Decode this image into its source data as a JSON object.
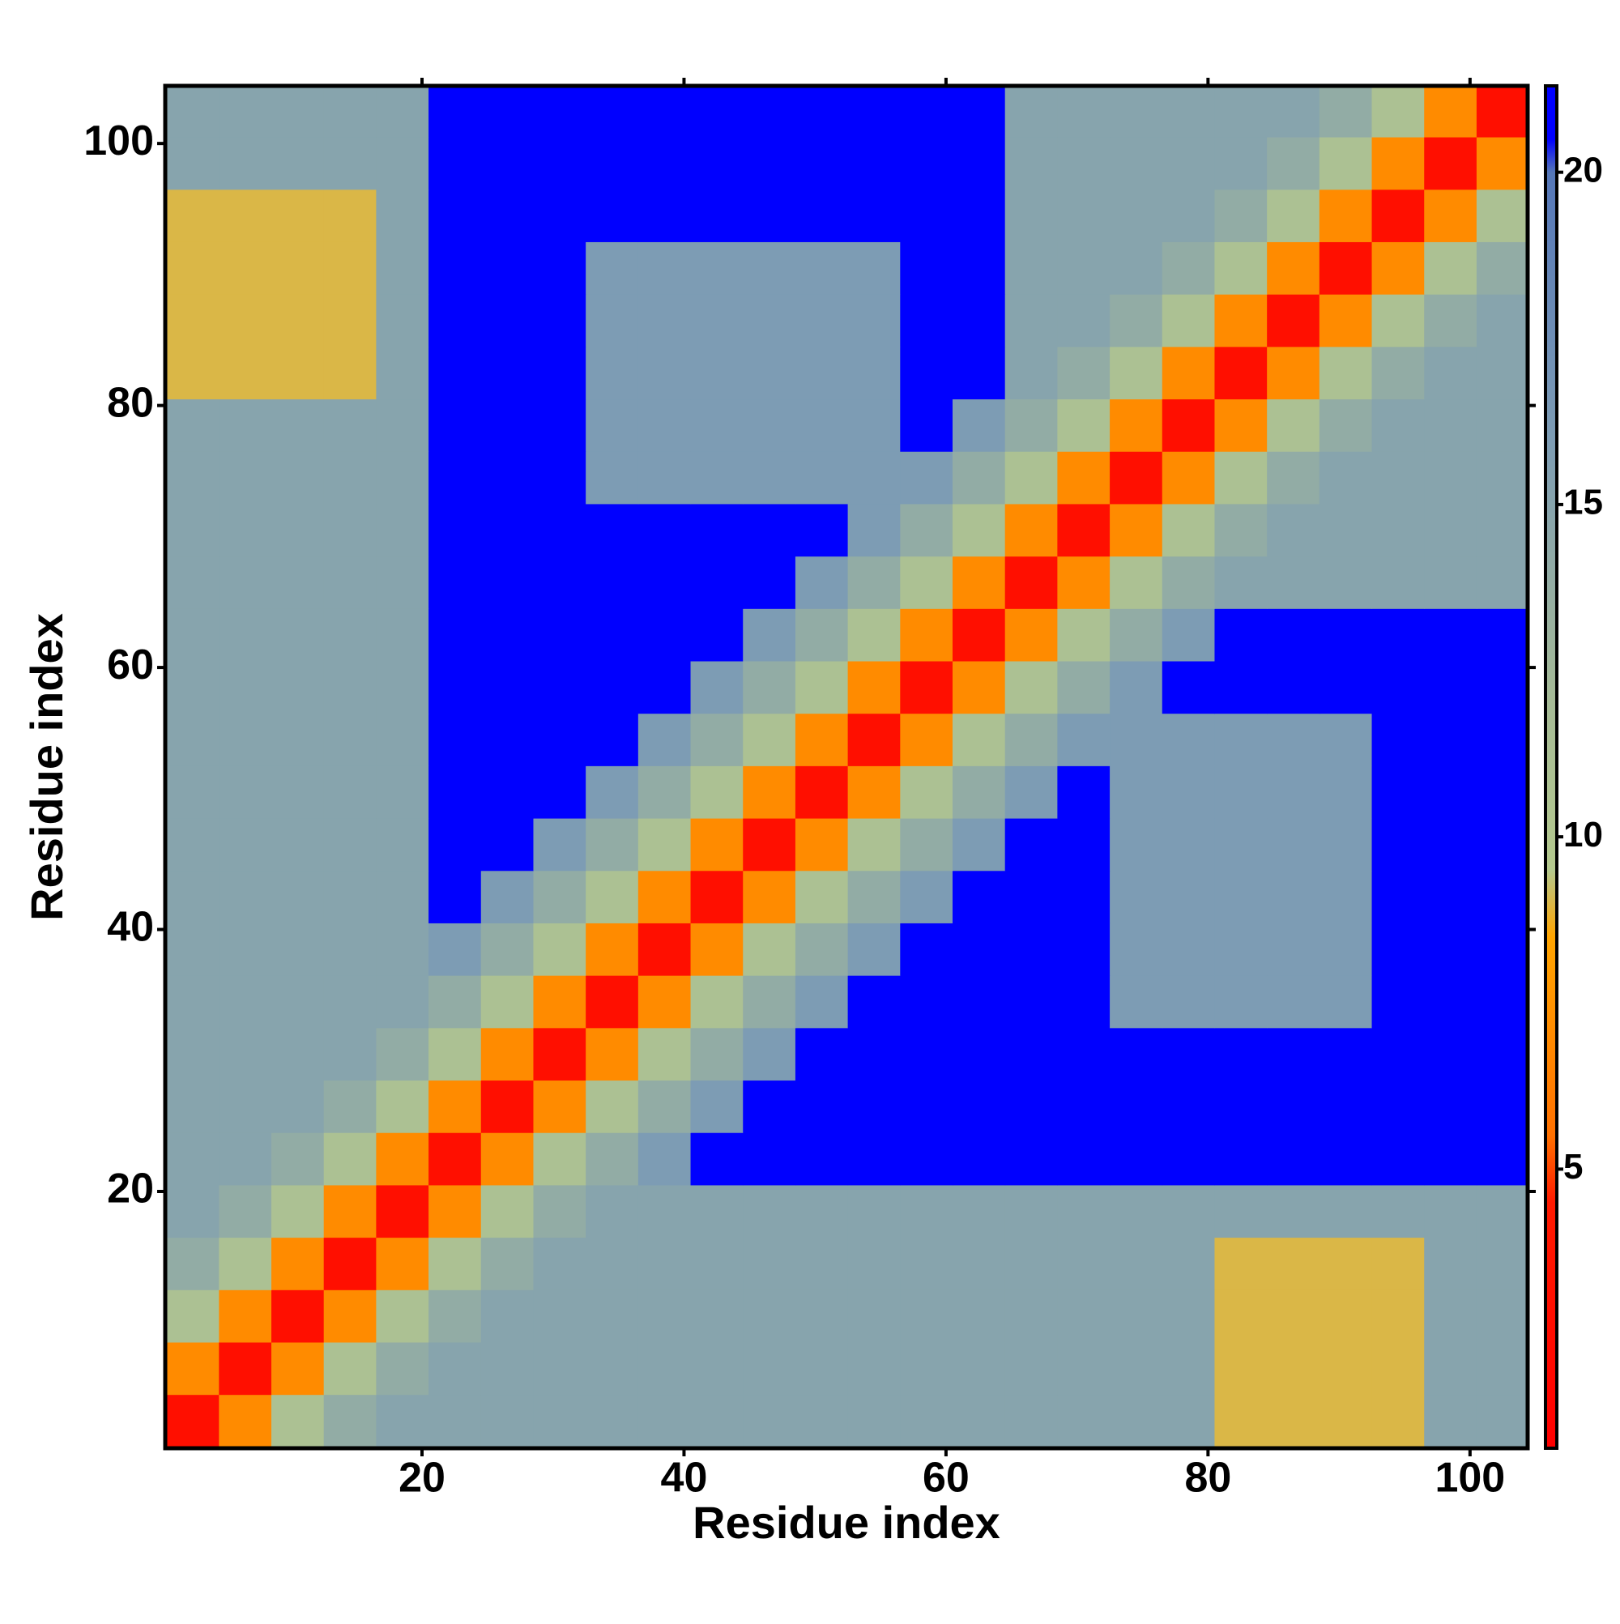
{
  "chart_data": {
    "type": "heatmap",
    "x_label": "Residue index",
    "y_label": "Residue index",
    "x": [
      2.5,
      6.5,
      10.5,
      14.5,
      18.5,
      22.5,
      26.5,
      30.5,
      34.5,
      38.5,
      42.5,
      46.5,
      50.5,
      54.5,
      58.5,
      62.5,
      66.5,
      70.5,
      74.5,
      78.5,
      82.5,
      86.5,
      90.5,
      94.5,
      98.5,
      102.5
    ],
    "y": [
      2.5,
      6.5,
      10.5,
      14.5,
      18.5,
      22.5,
      26.5,
      30.5,
      34.5,
      38.5,
      42.5,
      46.5,
      50.5,
      54.5,
      58.5,
      62.5,
      66.5,
      70.5,
      74.5,
      78.5,
      82.5,
      86.5,
      90.5,
      94.5,
      98.5,
      102.5
    ],
    "values": [
      [
        3,
        7,
        11,
        14,
        15,
        15,
        15,
        15,
        15,
        15,
        15,
        15,
        15,
        15,
        15,
        15,
        15,
        15,
        15,
        15,
        9,
        9,
        9,
        9,
        15,
        15
      ],
      [
        7,
        3,
        7,
        11,
        14,
        15,
        15,
        15,
        15,
        15,
        15,
        15,
        15,
        15,
        15,
        15,
        15,
        15,
        15,
        15,
        9,
        9,
        9,
        9,
        15,
        15
      ],
      [
        11,
        7,
        3,
        7,
        11,
        14,
        15,
        15,
        15,
        15,
        15,
        15,
        15,
        15,
        15,
        15,
        15,
        15,
        15,
        15,
        9,
        9,
        9,
        9,
        15,
        15
      ],
      [
        14,
        11,
        7,
        3,
        7,
        11,
        14,
        15,
        15,
        15,
        15,
        15,
        15,
        15,
        15,
        15,
        15,
        15,
        15,
        15,
        9,
        9,
        9,
        9,
        15,
        15
      ],
      [
        15,
        14,
        11,
        7,
        3,
        7,
        11,
        14,
        15,
        15,
        15,
        15,
        15,
        15,
        15,
        15,
        15,
        15,
        15,
        15,
        15,
        15,
        15,
        15,
        15,
        15
      ],
      [
        15,
        15,
        14,
        11,
        7,
        3,
        7,
        11,
        14,
        16,
        21,
        21,
        21,
        21,
        21,
        21,
        21,
        21,
        21,
        21,
        21,
        21,
        21,
        21,
        21,
        21
      ],
      [
        15,
        15,
        15,
        14,
        11,
        7,
        3,
        7,
        11,
        14,
        16,
        21,
        21,
        21,
        21,
        21,
        21,
        21,
        21,
        21,
        21,
        21,
        21,
        21,
        21,
        21
      ],
      [
        15,
        15,
        15,
        15,
        14,
        11,
        7,
        3,
        7,
        11,
        14,
        16,
        21,
        21,
        21,
        21,
        21,
        21,
        21,
        21,
        21,
        21,
        21,
        21,
        21,
        21
      ],
      [
        15,
        15,
        15,
        15,
        15,
        14,
        11,
        7,
        3,
        7,
        11,
        14,
        16,
        21,
        21,
        21,
        21,
        21,
        16,
        16,
        16,
        16,
        16,
        21,
        21,
        21
      ],
      [
        15,
        15,
        15,
        15,
        15,
        16,
        14,
        11,
        7,
        3,
        7,
        11,
        14,
        16,
        21,
        21,
        21,
        21,
        16,
        16,
        16,
        16,
        16,
        21,
        21,
        21
      ],
      [
        15,
        15,
        15,
        15,
        15,
        21,
        16,
        14,
        11,
        7,
        3,
        7,
        11,
        14,
        16,
        21,
        21,
        21,
        16,
        16,
        16,
        16,
        16,
        21,
        21,
        21
      ],
      [
        15,
        15,
        15,
        15,
        15,
        21,
        21,
        16,
        14,
        11,
        7,
        3,
        7,
        11,
        14,
        16,
        21,
        21,
        16,
        16,
        16,
        16,
        16,
        21,
        21,
        21
      ],
      [
        15,
        15,
        15,
        15,
        15,
        21,
        21,
        21,
        16,
        14,
        11,
        7,
        3,
        7,
        11,
        14,
        16,
        21,
        16,
        16,
        16,
        16,
        16,
        21,
        21,
        21
      ],
      [
        15,
        15,
        15,
        15,
        15,
        21,
        21,
        21,
        21,
        16,
        14,
        11,
        7,
        3,
        7,
        11,
        14,
        16,
        16,
        16,
        16,
        16,
        16,
        21,
        21,
        21
      ],
      [
        15,
        15,
        15,
        15,
        15,
        21,
        21,
        21,
        21,
        21,
        16,
        14,
        11,
        7,
        3,
        7,
        11,
        14,
        16,
        21,
        21,
        21,
        21,
        21,
        21,
        21
      ],
      [
        15,
        15,
        15,
        15,
        15,
        21,
        21,
        21,
        21,
        21,
        21,
        16,
        14,
        11,
        7,
        3,
        7,
        11,
        14,
        16,
        21,
        21,
        21,
        21,
        21,
        21
      ],
      [
        15,
        15,
        15,
        15,
        15,
        21,
        21,
        21,
        21,
        21,
        21,
        21,
        16,
        14,
        11,
        7,
        3,
        7,
        11,
        14,
        15,
        15,
        15,
        15,
        15,
        15
      ],
      [
        15,
        15,
        15,
        15,
        15,
        21,
        21,
        21,
        21,
        21,
        21,
        21,
        21,
        16,
        14,
        11,
        7,
        3,
        7,
        11,
        14,
        15,
        15,
        15,
        15,
        15
      ],
      [
        15,
        15,
        15,
        15,
        15,
        21,
        21,
        21,
        16,
        16,
        16,
        16,
        16,
        16,
        16,
        14,
        11,
        7,
        3,
        7,
        11,
        14,
        15,
        15,
        15,
        15
      ],
      [
        15,
        15,
        15,
        15,
        15,
        21,
        21,
        21,
        16,
        16,
        16,
        16,
        16,
        16,
        21,
        16,
        14,
        11,
        7,
        3,
        7,
        11,
        14,
        15,
        15,
        15
      ],
      [
        9,
        9,
        9,
        9,
        15,
        21,
        21,
        21,
        16,
        16,
        16,
        16,
        16,
        16,
        21,
        21,
        15,
        14,
        11,
        7,
        3,
        7,
        11,
        14,
        15,
        15
      ],
      [
        9,
        9,
        9,
        9,
        15,
        21,
        21,
        21,
        16,
        16,
        16,
        16,
        16,
        16,
        21,
        21,
        15,
        15,
        14,
        11,
        7,
        3,
        7,
        11,
        14,
        15
      ],
      [
        9,
        9,
        9,
        9,
        15,
        21,
        21,
        21,
        16,
        16,
        16,
        16,
        16,
        16,
        21,
        21,
        15,
        15,
        15,
        14,
        11,
        7,
        3,
        7,
        11,
        14
      ],
      [
        9,
        9,
        9,
        9,
        15,
        21,
        21,
        21,
        21,
        21,
        21,
        21,
        21,
        21,
        21,
        21,
        15,
        15,
        15,
        15,
        14,
        11,
        7,
        3,
        7,
        11
      ],
      [
        15,
        15,
        15,
        15,
        15,
        21,
        21,
        21,
        21,
        21,
        21,
        21,
        21,
        21,
        21,
        21,
        15,
        15,
        15,
        15,
        15,
        14,
        11,
        7,
        3,
        7
      ],
      [
        15,
        15,
        15,
        15,
        15,
        21,
        21,
        21,
        21,
        21,
        21,
        21,
        21,
        21,
        21,
        21,
        15,
        15,
        15,
        15,
        15,
        15,
        14,
        11,
        7,
        3
      ]
    ],
    "cell_size": 4,
    "xlim": [
      0.4,
      104.4
    ],
    "ylim": [
      0.4,
      104.4
    ],
    "xticks": [
      20,
      40,
      60,
      80,
      100
    ],
    "yticks": [
      20,
      40,
      60,
      80,
      100
    ],
    "zlim": [
      0.8,
      21.3
    ],
    "zticks": [
      5,
      10,
      15,
      20
    ],
    "colorscale": [
      [
        0.8,
        "#ff0000"
      ],
      [
        4.5,
        "#ff1a00"
      ],
      [
        5.5,
        "#ff7000"
      ],
      [
        8.5,
        "#ffa500"
      ],
      [
        9.5,
        "#b4c98e"
      ],
      [
        12,
        "#a6bb96"
      ],
      [
        16,
        "#7d9cb4"
      ],
      [
        20,
        "#5577b8"
      ],
      [
        20.5,
        "#0000ff"
      ],
      [
        21.3,
        "#0000ff"
      ]
    ]
  }
}
